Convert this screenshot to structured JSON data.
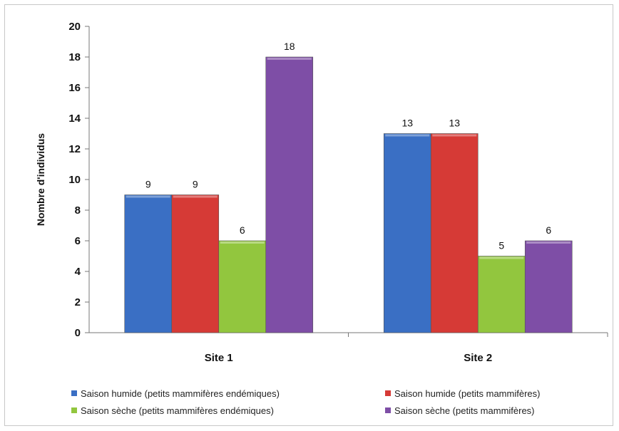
{
  "chart_data": {
    "type": "bar",
    "categories": [
      "Site 1",
      "Site 2"
    ],
    "series": [
      {
        "name": "Saison humide (petits mammifères endémiques)",
        "values": [
          9,
          13
        ],
        "color": "#3a6fc4"
      },
      {
        "name": "Saison humide (petits mammifères)",
        "values": [
          9,
          13
        ],
        "color": "#d63a36"
      },
      {
        "name": "Saison sèche (petits mammifères endémiques)",
        "values": [
          6,
          5
        ],
        "color": "#92c63e"
      },
      {
        "name": "Saison sèche (petits mammifères)",
        "values": [
          18,
          6
        ],
        "color": "#7e4ea6"
      }
    ],
    "title": "",
    "xlabel": "",
    "ylabel": "Nombre d'individus",
    "ylim": [
      0,
      20
    ],
    "yticks": [
      0,
      2,
      4,
      6,
      8,
      10,
      12,
      14,
      16,
      18,
      20
    ],
    "grid": false,
    "legend_position": "bottom"
  }
}
